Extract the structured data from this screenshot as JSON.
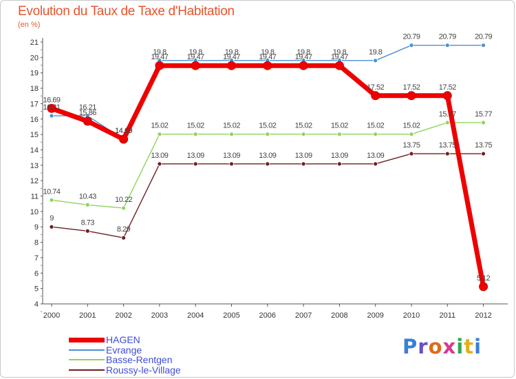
{
  "chart_data": {
    "type": "line",
    "title": "Evolution du Taux de Taxe d'Habitation",
    "ylabel": "(en %)",
    "xlabel": "",
    "categories": [
      "2000",
      "2001",
      "2002",
      "2003",
      "2004",
      "2005",
      "2006",
      "2007",
      "2008",
      "2009",
      "2010",
      "2011",
      "2012"
    ],
    "ylim": [
      4,
      21
    ],
    "yticks": [
      "4",
      "5",
      "6",
      "7",
      "8",
      "9",
      "10",
      "11",
      "12",
      "13",
      "14",
      "15",
      "16",
      "17",
      "18",
      "19",
      "20",
      "21"
    ],
    "grid": false,
    "legend_position": "bottom-left",
    "series": [
      {
        "name": "HAGEN",
        "color": "#ee0000",
        "values": [
          16.69,
          15.86,
          14.69,
          19.47,
          19.47,
          19.47,
          19.47,
          19.47,
          19.47,
          17.52,
          17.52,
          17.52,
          5.12
        ],
        "labels": [
          "16.69",
          "15.86",
          "14.69",
          "19.47",
          "19.47",
          "19.47",
          "19.47",
          "19.47",
          "19.47",
          "17.52",
          "17.52",
          "17.52",
          "5.12"
        ]
      },
      {
        "name": "Evrange",
        "color": "#4a8fd4",
        "values": [
          16.21,
          16.21,
          14.69,
          19.8,
          19.8,
          19.8,
          19.8,
          19.8,
          19.8,
          19.8,
          20.79,
          20.79,
          20.79
        ],
        "labels": [
          "16.21",
          "16.21",
          "14.69",
          "19.8",
          "19.8",
          "19.8",
          "19.8",
          "19.8",
          "19.8",
          "19.8",
          "20.79",
          "20.79",
          "20.79"
        ]
      },
      {
        "name": "Basse-Rentgen",
        "color": "#8ed45a",
        "values": [
          10.74,
          10.43,
          10.22,
          15.02,
          15.02,
          15.02,
          15.02,
          15.02,
          15.02,
          15.02,
          15.02,
          15.77,
          15.77
        ],
        "labels": [
          "10.74",
          "10.43",
          "10.22",
          "15.02",
          "15.02",
          "15.02",
          "15.02",
          "15.02",
          "15.02",
          "15.02",
          "15.02",
          "15.77",
          "15.77"
        ]
      },
      {
        "name": "Roussy-le-Village",
        "color": "#6e1e1e",
        "values": [
          9,
          8.73,
          8.29,
          13.09,
          13.09,
          13.09,
          13.09,
          13.09,
          13.09,
          13.09,
          13.75,
          13.75,
          13.75
        ],
        "labels": [
          "9",
          "8.73",
          "8.29",
          "13.09",
          "13.09",
          "13.09",
          "13.09",
          "13.09",
          "13.09",
          "13.09",
          "13.75",
          "13.75",
          "13.75"
        ]
      }
    ]
  },
  "logo": {
    "text": "Proxiti"
  }
}
